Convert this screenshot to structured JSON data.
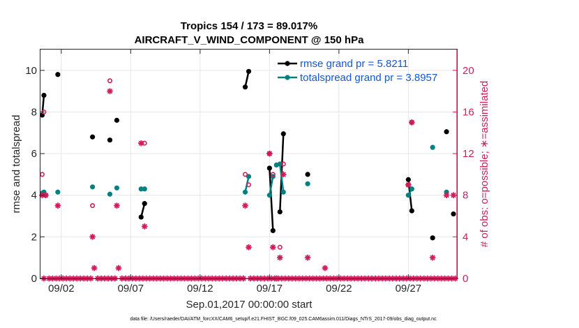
{
  "chart_data": {
    "type": "line",
    "title": "Tropics 154 / 173 = 89.017%",
    "subtitle": "AIRCRAFT_V_WIND_COMPONENT @ 150 hPa",
    "xlabel": "Sep.01,2017 00:00:00 start",
    "ylabel": "rmse and totalspread",
    "ylabel_right": "# of obs: o=possible; ∗=assimilated",
    "xlim": [
      0.5,
      30.5
    ],
    "ylim": [
      0,
      11
    ],
    "ylim_right": [
      0,
      22
    ],
    "x_ticks": [
      2,
      7,
      12,
      17,
      22,
      27
    ],
    "x_tick_labels": [
      "09/02",
      "09/07",
      "09/12",
      "09/17",
      "09/22",
      "09/27"
    ],
    "y_ticks": [
      0,
      2,
      4,
      6,
      8,
      10
    ],
    "y_ticks_right": [
      0,
      4,
      8,
      12,
      16,
      20
    ],
    "grid": true,
    "legend_position": "top-right",
    "colors": {
      "rmse": "#000000",
      "totalspread": "#00807f",
      "obs": "#d01c5b",
      "axis": "#262626",
      "grid": "#e6e6e6",
      "legend_text": "#1456d4"
    },
    "series": [
      {
        "name": "rmse grand pr = 5.8211",
        "axis": "left",
        "points": [
          [
            0.625,
            7.85
          ],
          [
            0.75,
            8.8
          ],
          null,
          [
            1.75,
            9.8
          ],
          null,
          [
            4.25,
            6.8
          ],
          null,
          [
            5.5,
            6.65
          ],
          null,
          [
            6.0,
            7.6
          ],
          null,
          [
            7.75,
            2.95
          ],
          [
            8.0,
            3.6
          ],
          null,
          [
            15.25,
            9.2
          ],
          [
            15.5,
            9.95
          ],
          null,
          [
            17.0,
            5.3
          ],
          [
            17.25,
            2.3
          ],
          null,
          [
            17.75,
            3.2
          ],
          [
            18.0,
            6.95
          ],
          null,
          [
            19.75,
            5.0
          ],
          null,
          [
            27.0,
            4.75
          ],
          [
            27.25,
            3.25
          ],
          null,
          [
            28.75,
            1.95
          ],
          null,
          [
            29.75,
            7.05
          ],
          null,
          [
            30.25,
            3.1
          ]
        ]
      },
      {
        "name": "totalspread grand pr = 3.8957",
        "axis": "left",
        "points": [
          [
            0.625,
            4.1
          ],
          [
            0.75,
            4.15
          ],
          null,
          [
            1.75,
            4.15
          ],
          null,
          [
            4.25,
            4.4
          ],
          null,
          [
            5.5,
            4.05
          ],
          null,
          [
            6.0,
            4.35
          ],
          null,
          [
            7.75,
            4.3
          ],
          [
            8.0,
            4.3
          ],
          null,
          [
            15.25,
            4.15
          ],
          [
            15.5,
            4.9
          ],
          null,
          [
            17.0,
            4.0
          ],
          [
            17.25,
            4.9
          ],
          null,
          [
            17.5,
            5.45
          ],
          [
            17.75,
            5.5
          ],
          [
            18.0,
            4.15
          ],
          null,
          [
            19.75,
            4.55
          ],
          null,
          [
            27.0,
            4.0
          ],
          [
            27.25,
            4.3
          ],
          null,
          [
            28.75,
            6.3
          ],
          null,
          [
            29.75,
            4.15
          ]
        ]
      }
    ],
    "obs_possible": {
      "axis": "right",
      "points": [
        [
          0.625,
          10
        ],
        [
          0.75,
          16
        ],
        [
          0.875,
          8
        ],
        [
          4.25,
          7
        ],
        [
          5.5,
          19
        ],
        [
          8.0,
          13
        ],
        [
          15.25,
          10
        ],
        [
          15.5,
          9
        ],
        [
          17.0,
          12
        ],
        [
          17.25,
          10
        ],
        [
          17.75,
          3
        ],
        [
          18.0,
          11
        ],
        [
          27.0,
          9
        ],
        [
          27.25,
          15
        ]
      ]
    },
    "obs_assimilated": {
      "axis": "right",
      "x": [
        0.625,
        0.75,
        0.875,
        1.125,
        1.375,
        1.625,
        1.75,
        1.875,
        2.125,
        2.375,
        2.625,
        2.875,
        3.125,
        3.375,
        3.625,
        3.875,
        4.125,
        4.25,
        4.375,
        4.625,
        4.875,
        5.125,
        5.375,
        5.5,
        5.625,
        5.875,
        6.0,
        6.125,
        6.375,
        6.625,
        6.875,
        7.125,
        7.375,
        7.625,
        7.75,
        7.875,
        8.0,
        8.125,
        8.375,
        8.625,
        8.875,
        9.125,
        9.375,
        9.625,
        9.875,
        10.125,
        10.375,
        10.625,
        10.875,
        11.125,
        11.375,
        11.625,
        11.875,
        12.125,
        12.375,
        12.625,
        12.875,
        13.125,
        13.375,
        13.625,
        13.875,
        14.125,
        14.375,
        14.625,
        14.875,
        15.125,
        15.25,
        15.5,
        15.625,
        15.875,
        16.125,
        16.375,
        16.625,
        16.875,
        17.0,
        17.125,
        17.25,
        17.375,
        17.5,
        17.625,
        17.75,
        17.875,
        18.0,
        18.125,
        18.375,
        18.625,
        18.875,
        19.125,
        19.375,
        19.625,
        19.75,
        19.875,
        20.125,
        20.375,
        20.625,
        20.875,
        21.0,
        21.125,
        21.375,
        21.625,
        21.875,
        22.125,
        22.375,
        22.625,
        22.875,
        23.125,
        23.375,
        23.625,
        23.875,
        24.125,
        24.375,
        24.625,
        24.875,
        25.125,
        25.375,
        25.625,
        25.875,
        26.125,
        26.375,
        26.625,
        26.875,
        27.0,
        27.125,
        27.25,
        27.375,
        27.625,
        27.875,
        28.125,
        28.375,
        28.625,
        28.75,
        28.875,
        29.125,
        29.375,
        29.625,
        29.75,
        29.875,
        30.125,
        30.25,
        30.375
      ],
      "y": [
        8,
        0,
        8,
        0,
        0,
        0,
        7,
        0,
        0,
        0,
        0,
        0,
        0,
        0,
        0,
        0,
        0,
        4,
        1,
        0,
        0,
        0,
        0,
        18,
        0,
        0,
        7,
        1,
        0,
        0,
        0,
        0,
        0,
        0,
        13,
        0,
        5,
        0,
        0,
        0,
        0,
        0,
        0,
        0,
        0,
        0,
        0,
        0,
        0,
        0,
        0,
        0,
        0,
        0,
        0,
        0,
        0,
        0,
        0,
        0,
        0,
        0,
        0,
        0,
        0,
        0,
        7,
        3,
        0,
        0,
        0,
        0,
        0,
        0,
        12,
        0,
        3,
        0,
        0,
        0,
        2,
        0,
        10,
        0,
        0,
        0,
        0,
        0,
        0,
        0,
        2,
        0,
        0,
        0,
        0,
        0,
        1,
        0,
        0,
        0,
        0,
        0,
        0,
        0,
        0,
        0,
        0,
        0,
        0,
        0,
        0,
        0,
        0,
        0,
        0,
        0,
        0,
        0,
        0,
        0,
        0,
        9,
        0,
        15,
        0,
        0,
        0,
        0,
        0,
        0,
        2,
        0,
        0,
        0,
        0,
        8,
        0,
        0,
        8,
        0
      ]
    },
    "footnote": "data file: /Users/raeder/DAI/ATM_forcXX/CAM6_setup/f.e21.FHIST_BGC.f09_025.CAM6assim.011/Diags_NTrS_2017-09/obs_diag_output.nc"
  }
}
